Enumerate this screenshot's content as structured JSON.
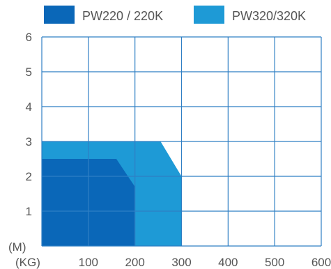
{
  "chart_data": {
    "type": "area",
    "xlabel": "(KG)",
    "ylabel": "(M)",
    "xlim": [
      0,
      600
    ],
    "ylim": [
      0,
      6
    ],
    "x_ticks": [
      "100",
      "200",
      "300",
      "400",
      "500",
      "600"
    ],
    "y_ticks": [
      "1",
      "2",
      "3",
      "4",
      "5",
      "6"
    ],
    "grid": true,
    "legend_position": "top",
    "series": [
      {
        "name": "PW320/320K",
        "color": "#1e9ad6",
        "points": [
          [
            0,
            0
          ],
          [
            0,
            3
          ],
          [
            255,
            3
          ],
          [
            300,
            2
          ],
          [
            300,
            0
          ]
        ]
      },
      {
        "name": "PW220 / 220K",
        "color": "#0a67b8",
        "points": [
          [
            0,
            0
          ],
          [
            0,
            2.5
          ],
          [
            160,
            2.5
          ],
          [
            200,
            1.7
          ],
          [
            200,
            0
          ]
        ]
      }
    ]
  }
}
